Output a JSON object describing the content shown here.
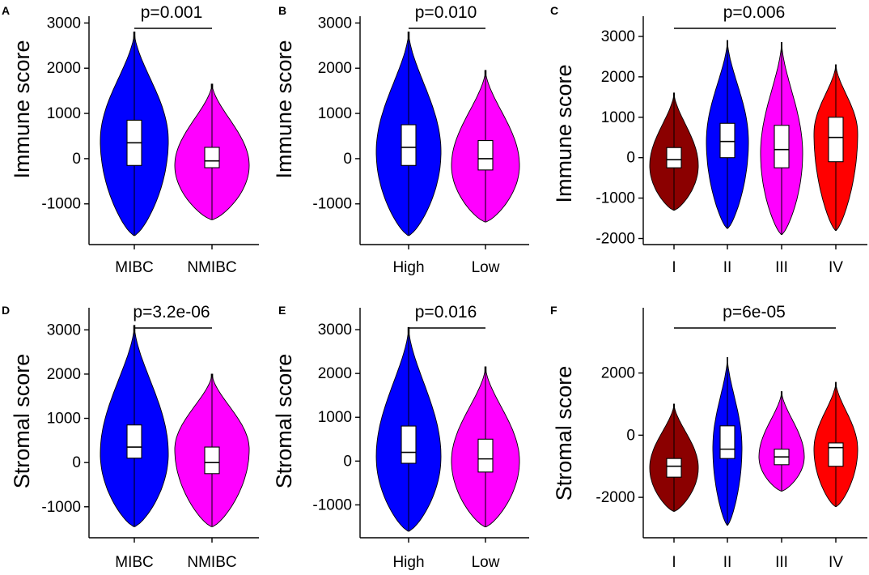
{
  "figure": {
    "colors": {
      "dark_red": "#8b0000",
      "blue": "#0000ff",
      "magenta": "#ff00ff",
      "red": "#ff0000"
    },
    "chart_data": [
      {
        "label": "A",
        "type": "violin",
        "ylabel": "Immune score",
        "pvalue": "p=0.001",
        "ylim": [
          -1900,
          3150
        ],
        "yticks": [
          3000,
          2000,
          1000,
          0,
          -1000
        ],
        "categories": [
          "MIBC",
          "NMIBC"
        ],
        "groups": [
          {
            "name": "MIBC",
            "color": "#0000ff",
            "median": 350,
            "q1": -150,
            "q3": 850,
            "whisker_low": -1700,
            "whisker_high": 2800,
            "density_peak": 400
          },
          {
            "name": "NMIBC",
            "color": "#ff00ff",
            "median": -50,
            "q1": -200,
            "q3": 250,
            "whisker_low": -1350,
            "whisker_high": 1650,
            "density_peak": -150
          }
        ]
      },
      {
        "label": "B",
        "type": "violin",
        "ylabel": "Immune score",
        "pvalue": "p=0.010",
        "ylim": [
          -1900,
          3150
        ],
        "yticks": [
          3000,
          2000,
          1000,
          0,
          -1000
        ],
        "categories": [
          "High",
          "Low"
        ],
        "groups": [
          {
            "name": "High",
            "color": "#0000ff",
            "median": 250,
            "q1": -150,
            "q3": 750,
            "whisker_low": -1700,
            "whisker_high": 2800,
            "density_peak": 150
          },
          {
            "name": "Low",
            "color": "#ff00ff",
            "median": 0,
            "q1": -250,
            "q3": 400,
            "whisker_low": -1400,
            "whisker_high": 1950,
            "density_peak": -150
          }
        ]
      },
      {
        "label": "C",
        "type": "violin",
        "ylabel": "Immune score",
        "pvalue": "p=0.006",
        "ylim": [
          -2150,
          3500
        ],
        "yticks": [
          3000,
          2000,
          1000,
          0,
          -1000,
          -2000
        ],
        "categories": [
          "I",
          "II",
          "III",
          "IV"
        ],
        "groups": [
          {
            "name": "I",
            "color": "#8b0000",
            "median": -50,
            "q1": -250,
            "q3": 250,
            "whisker_low": -1300,
            "whisker_high": 1600,
            "density_peak": -200
          },
          {
            "name": "II",
            "color": "#0000ff",
            "median": 400,
            "q1": 0,
            "q3": 850,
            "whisker_low": -1750,
            "whisker_high": 2900,
            "density_peak": 400
          },
          {
            "name": "III",
            "color": "#ff00ff",
            "median": 200,
            "q1": -250,
            "q3": 800,
            "whisker_low": -1900,
            "whisker_high": 2850,
            "density_peak": 100
          },
          {
            "name": "IV",
            "color": "#ff0000",
            "median": 500,
            "q1": -100,
            "q3": 1000,
            "whisker_low": -1800,
            "whisker_high": 2300,
            "density_peak": 600
          }
        ]
      },
      {
        "label": "D",
        "type": "violin",
        "ylabel": "Stromal score",
        "pvalue": "p=3.2e-06",
        "ylim": [
          -1700,
          3500
        ],
        "yticks": [
          3000,
          2000,
          1000,
          0,
          -1000
        ],
        "categories": [
          "MIBC",
          "NMIBC"
        ],
        "groups": [
          {
            "name": "MIBC",
            "color": "#0000ff",
            "median": 350,
            "q1": 100,
            "q3": 850,
            "whisker_low": -1450,
            "whisker_high": 3100,
            "density_peak": 200
          },
          {
            "name": "NMIBC",
            "color": "#ff00ff",
            "median": 0,
            "q1": -250,
            "q3": 350,
            "whisker_low": -1450,
            "whisker_high": 2000,
            "density_peak": 300
          }
        ]
      },
      {
        "label": "E",
        "type": "violin",
        "ylabel": "Stromal score",
        "pvalue": "p=0.016",
        "ylim": [
          -1750,
          3500
        ],
        "yticks": [
          3000,
          2000,
          1000,
          0,
          -1000
        ],
        "categories": [
          "High",
          "Low"
        ],
        "groups": [
          {
            "name": "High",
            "color": "#0000ff",
            "median": 200,
            "q1": -50,
            "q3": 800,
            "whisker_low": -1600,
            "whisker_high": 3050,
            "density_peak": 100
          },
          {
            "name": "Low",
            "color": "#ff00ff",
            "median": 50,
            "q1": -250,
            "q3": 500,
            "whisker_low": -1500,
            "whisker_high": 2150,
            "density_peak": 0
          }
        ]
      },
      {
        "label": "F",
        "type": "violin",
        "ylabel": "Stromal score",
        "pvalue": "p=6e-05",
        "ylim": [
          -3300,
          4100
        ],
        "yticks": [
          2000,
          0,
          -2000
        ],
        "categories": [
          "I",
          "II",
          "III",
          "IV"
        ],
        "groups": [
          {
            "name": "I",
            "color": "#8b0000",
            "median": -1000,
            "q1": -1350,
            "q3": -750,
            "whisker_low": -2450,
            "whisker_high": 1000,
            "density_peak": -1050
          },
          {
            "name": "II",
            "color": "#0000ff",
            "median": -450,
            "q1": -750,
            "q3": 300,
            "whisker_low": -2900,
            "whisker_high": 2500,
            "density_peak": -400
          },
          {
            "name": "III",
            "color": "#ff00ff",
            "median": -700,
            "q1": -950,
            "q3": -450,
            "whisker_low": -1800,
            "whisker_high": 1400,
            "density_peak": -700
          },
          {
            "name": "IV",
            "color": "#ff0000",
            "median": -400,
            "q1": -1000,
            "q3": -250,
            "whisker_low": -2300,
            "whisker_high": 1700,
            "density_peak": -450
          }
        ]
      }
    ]
  }
}
